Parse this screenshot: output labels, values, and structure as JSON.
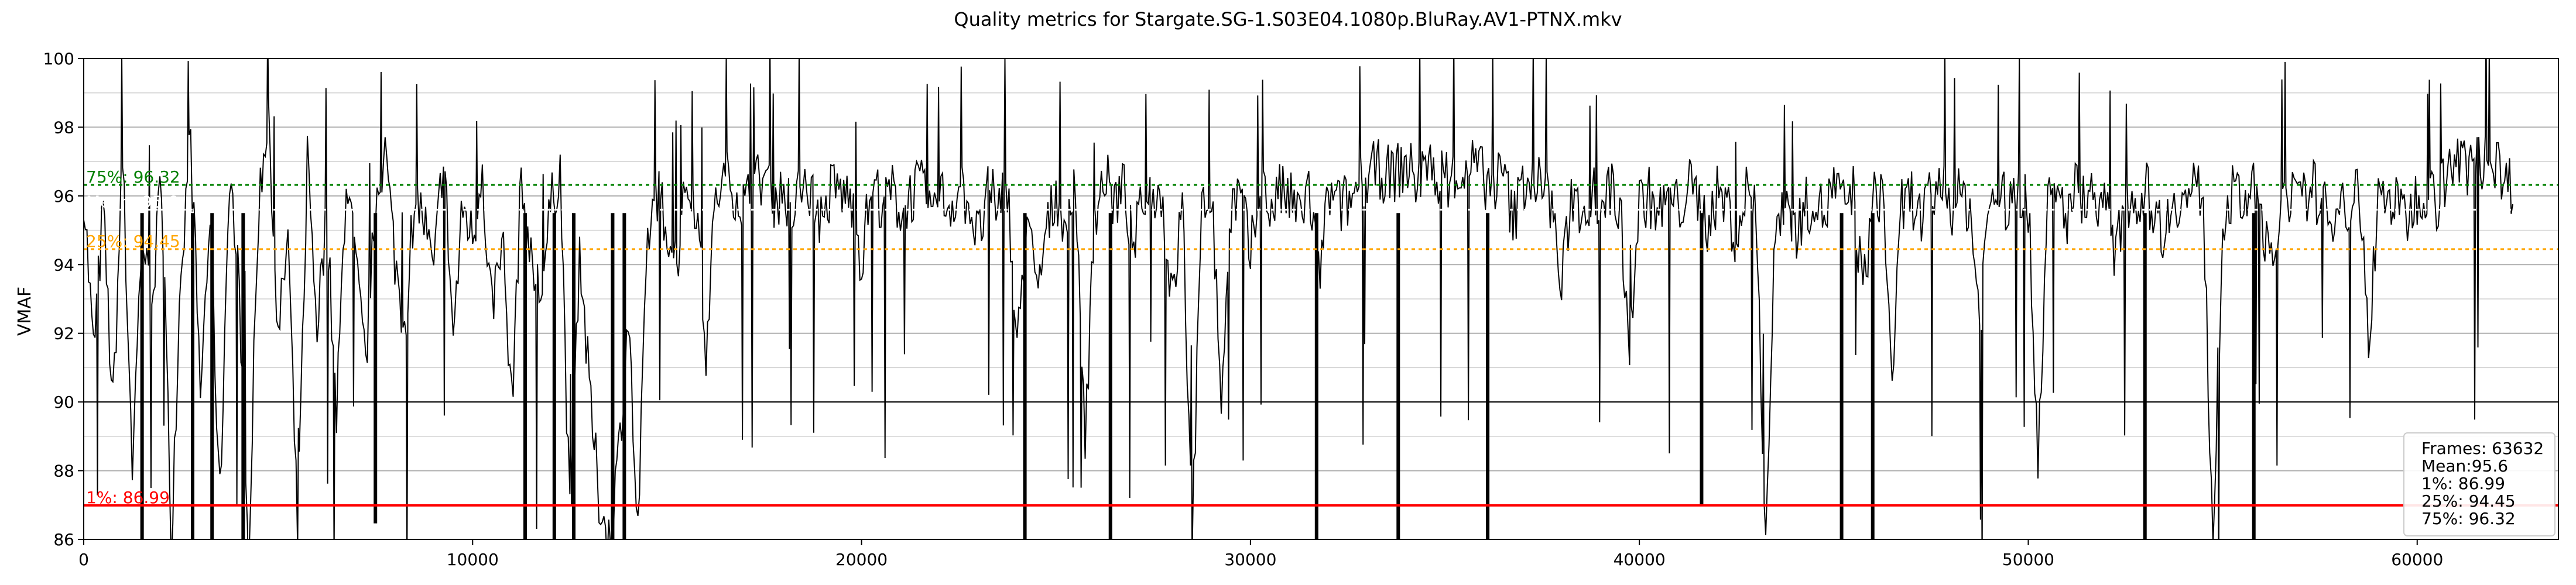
{
  "chart_data": {
    "type": "line",
    "title": "Quality metrics for Stargate.SG-1.S03E04.1080p.BluRay.AV1-PTNX.mkv",
    "xlabel": "",
    "ylabel": "VMAF",
    "xlim": [
      0,
      63632
    ],
    "ylim": [
      86,
      100
    ],
    "x_ticks": [
      0,
      10000,
      20000,
      30000,
      40000,
      50000,
      60000
    ],
    "y_ticks": [
      86,
      88,
      90,
      92,
      94,
      96,
      98,
      100
    ],
    "grid": true,
    "series": [
      {
        "color": "#000000",
        "x_step": 250,
        "values": [
          96.2,
          91.4,
          95.6,
          89.8,
          97.1,
          88.2,
          95.0,
          92.6,
          96.8,
          86.0,
          94.1,
          97.6,
          90.3,
          95.5,
          87.1,
          96.9,
          93.2,
          86.0,
          95.8,
          98.6,
          91.7,
          94.9,
          86.0,
          97.2,
          92.3,
          95.4,
          89.4,
          96.7,
          93.8,
          91.0,
          95.9,
          97.3,
          94.2,
          92.1,
          96.0,
          95.3,
          93.6,
          97.4,
          91.9,
          95.7,
          94.8,
          96.3,
          92.7,
          95.1,
          89.9,
          96.5,
          94.0,
          93.1,
          95.6,
          96.9,
          86.5,
          94.6,
          90.3,
          87.2,
          86.0,
          88.4,
          92.5,
          86.0,
          94.8,
          96.1,
          95.2,
          93.9,
          96.4,
          95.8,
          91.6,
          95.9,
          96.5,
          96.2,
          95.7,
          96.3,
          96.6,
          95.9,
          96.1,
          95.4,
          96.7,
          96.0,
          95.2,
          96.3,
          96.1,
          95.8,
          94.1,
          96.4,
          95.9,
          96.2,
          95.6,
          96.0,
          96.3,
          95.5,
          96.1,
          95.7,
          96.2,
          95.9,
          94.7,
          96.0,
          95.8,
          96.4,
          91.3,
          95.6,
          93.0,
          94.9,
          96.1,
          95.3,
          96.0,
          89.2,
          95.4,
          96.6,
          95.8,
          96.2,
          94.5,
          95.9,
          96.3,
          95.7,
          92.8,
          96.0,
          86.0,
          95.5,
          96.2,
          90.1,
          95.8,
          96.0,
          94.2,
          96.4,
          95.6,
          96.1,
          95.9,
          95.4,
          96.2,
          93.6,
          96.0,
          95.7,
          95.8,
          96.2,
          96.5,
          96.8,
          96.6,
          96.7,
          96.9,
          96.5,
          96.6,
          96.8,
          96.4,
          96.7,
          96.6,
          96.9,
          96.5,
          96.3,
          96.7,
          95.2,
          96.4,
          96.6,
          96.2,
          95.8,
          93.2,
          96.1,
          95.6,
          96.0,
          95.9,
          96.2,
          95.7,
          91.8,
          95.8,
          96.0,
          95.4,
          96.1,
          95.6,
          96.3,
          95.9,
          95.2,
          96.0,
          95.8,
          94.6,
          96.2,
          95.7,
          86.0,
          95.1,
          96.1,
          94.9,
          95.6,
          96.0,
          95.4,
          96.3,
          95.7,
          96.1,
          93.1,
          95.8,
          96.2,
          90.8,
          95.6,
          96.0,
          95.3,
          95.9,
          96.4,
          95.5,
          96.0,
          95.7,
          92.4,
          95.9,
          96.1,
          95.6,
          96.2,
          95.8,
          88.6,
          95.7,
          96.0,
          95.4,
          96.3,
          95.9,
          96.1,
          95.5,
          94.2,
          96.0,
          95.8,
          96.2,
          95.6,
          94.9,
          96.1,
          95.7,
          96.3,
          95.9,
          86.0,
          95.4,
          96.0,
          95.8,
          96.2,
          95.5,
          93.8,
          95.9,
          96.1,
          95.6,
          96.4,
          95.8,
          95.3,
          96.0,
          95.7,
          96.2,
          91.9,
          95.9,
          96.1,
          95.6,
          95.4,
          96.0,
          96.3,
          95.8,
          96.6,
          97.0,
          96.8,
          97.2,
          96.9,
          97.1,
          96.4,
          96.3
        ],
        "dips": [
          {
            "x": 1500,
            "y": 86.0
          },
          {
            "x": 2800,
            "y": 86.0
          },
          {
            "x": 3300,
            "y": 86.0
          },
          {
            "x": 4100,
            "y": 86.0
          },
          {
            "x": 7500,
            "y": 86.5
          },
          {
            "x": 11350,
            "y": 86.0
          },
          {
            "x": 12100,
            "y": 86.0
          },
          {
            "x": 12600,
            "y": 86.0
          },
          {
            "x": 13600,
            "y": 86.0
          },
          {
            "x": 13900,
            "y": 86.0
          },
          {
            "x": 24200,
            "y": 86.0
          },
          {
            "x": 26400,
            "y": 86.0
          },
          {
            "x": 31700,
            "y": 86.0
          },
          {
            "x": 33800,
            "y": 86.0
          },
          {
            "x": 36100,
            "y": 86.0
          },
          {
            "x": 41600,
            "y": 87.0
          },
          {
            "x": 45200,
            "y": 86.0
          },
          {
            "x": 46000,
            "y": 86.0
          },
          {
            "x": 53000,
            "y": 86.0
          },
          {
            "x": 55800,
            "y": 86.0
          }
        ]
      }
    ],
    "reference_lines": [
      {
        "label": "1%: 86.99",
        "value": 86.99,
        "color": "#ff0000",
        "style": "solid"
      },
      {
        "label": "25%: 94.45",
        "value": 94.45,
        "color": "#ffa500",
        "style": "dotted"
      },
      {
        "label": "Mean: 95.6",
        "value": 95.6,
        "color": "#ffffff",
        "style": "dotted"
      },
      {
        "label": "75%: 96.32",
        "value": 96.32,
        "color": "#008000",
        "style": "dotted"
      }
    ],
    "legend": {
      "placement": "bottom-right",
      "lines": [
        "Frames: 63632",
        "Mean:95.6",
        "1%: 86.99",
        "25%: 94.45",
        "75%: 96.32"
      ]
    }
  }
}
